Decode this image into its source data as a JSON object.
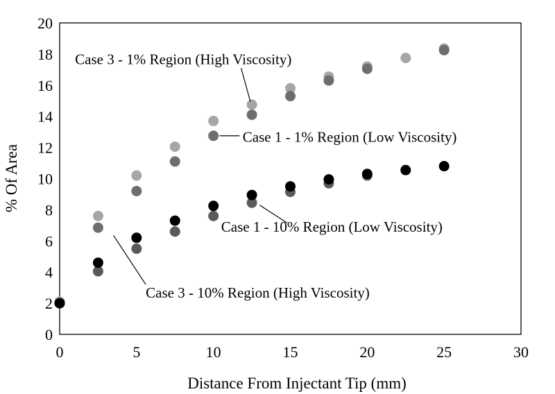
{
  "chart_data": {
    "type": "scatter",
    "title": "",
    "xlabel": "Distance From Injectant Tip (mm)",
    "ylabel": "% Of Area",
    "xlim": [
      0,
      30
    ],
    "ylim": [
      0,
      20
    ],
    "x_ticks": [
      "0",
      "5",
      "10",
      "15",
      "20",
      "25",
      "30"
    ],
    "y_ticks": [
      "0",
      "2",
      "4",
      "6",
      "8",
      "10",
      "12",
      "14",
      "16",
      "18",
      "20"
    ],
    "grid": "none",
    "legend": "none",
    "series": [
      {
        "color": "#a6a6a6",
        "points": [
          [
            0,
            2.1
          ],
          [
            2.5,
            7.6
          ],
          [
            5,
            10.2
          ],
          [
            7.5,
            12.05
          ],
          [
            10,
            13.7
          ],
          [
            12.5,
            14.75
          ],
          [
            15,
            15.8
          ],
          [
            17.5,
            16.55
          ],
          [
            20,
            17.2
          ],
          [
            22.5,
            17.75
          ],
          [
            25,
            18.35
          ]
        ]
      },
      {
        "color": "#6e6e6e",
        "points": [
          [
            0,
            2.0
          ],
          [
            2.5,
            6.85
          ],
          [
            5,
            9.2
          ],
          [
            7.5,
            11.1
          ],
          [
            10,
            12.75
          ],
          [
            12.5,
            14.1
          ],
          [
            15,
            15.3
          ],
          [
            17.5,
            16.3
          ],
          [
            20,
            17.05
          ],
          [
            25,
            18.25
          ]
        ]
      },
      {
        "color": "#5a5a5a",
        "points": [
          [
            0,
            2.0
          ],
          [
            2.5,
            4.05
          ],
          [
            5,
            5.5
          ],
          [
            7.5,
            6.6
          ],
          [
            10,
            7.6
          ],
          [
            12.5,
            8.45
          ],
          [
            15,
            9.15
          ],
          [
            17.5,
            9.7
          ],
          [
            20,
            10.2
          ]
        ]
      },
      {
        "color": "#000000",
        "points": [
          [
            0,
            2.0
          ],
          [
            2.5,
            4.6
          ],
          [
            5,
            6.2
          ],
          [
            7.5,
            7.3
          ],
          [
            10,
            8.25
          ],
          [
            12.5,
            8.95
          ],
          [
            15,
            9.5
          ],
          [
            17.5,
            9.95
          ],
          [
            20,
            10.3
          ],
          [
            22.5,
            10.55
          ],
          [
            25,
            10.8
          ]
        ]
      }
    ],
    "annotations": [
      {
        "text": "Case 3 - 1% Region (High Viscosity)",
        "anchor": "start",
        "text_at": [
          1.0,
          17.35
        ],
        "line_from": [
          11.8,
          17.1
        ],
        "line_to": [
          12.4,
          14.95
        ]
      },
      {
        "text": "Case 1 - 1% Region (Low Viscosity)",
        "anchor": "start",
        "text_at": [
          11.9,
          12.35
        ],
        "line_from": [
          10.4,
          12.75
        ],
        "line_to": [
          11.7,
          12.75
        ]
      },
      {
        "text": "Case 1 - 10% Region (Low Viscosity)",
        "anchor": "start",
        "text_at": [
          10.5,
          6.6
        ],
        "line_from": [
          13.0,
          8.3
        ],
        "line_to": [
          14.8,
          7.15
        ]
      },
      {
        "text": "Case 3 - 10% Region (High Viscosity)",
        "anchor": "start",
        "text_at": [
          5.6,
          2.35
        ],
        "line_from": [
          3.5,
          6.35
        ],
        "line_to": [
          5.6,
          3.2
        ]
      }
    ]
  }
}
